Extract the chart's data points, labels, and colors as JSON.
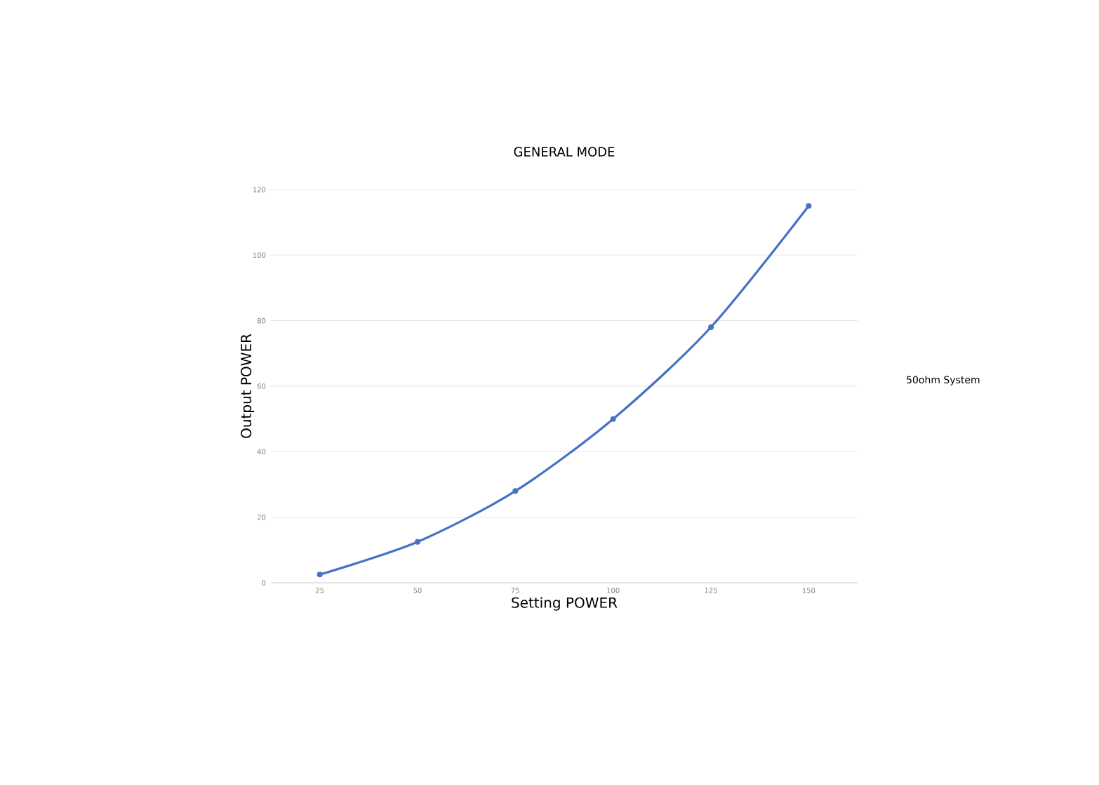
{
  "chart_data": {
    "type": "line",
    "title": "GENERAL MODE",
    "xlabel": "Setting POWER",
    "ylabel": "Output POWER",
    "categories": [
      "25",
      "50",
      "75",
      "100",
      "125",
      "150"
    ],
    "series": [
      {
        "color": "#4472c4",
        "values": [
          2.5,
          12.5,
          28,
          50,
          78,
          115
        ]
      }
    ],
    "ylim": [
      0,
      120
    ],
    "yticks": [
      0,
      20,
      40,
      60,
      80,
      100,
      120
    ],
    "grid": "y",
    "marker": "circle",
    "annotations": [
      "50ohm System"
    ]
  }
}
